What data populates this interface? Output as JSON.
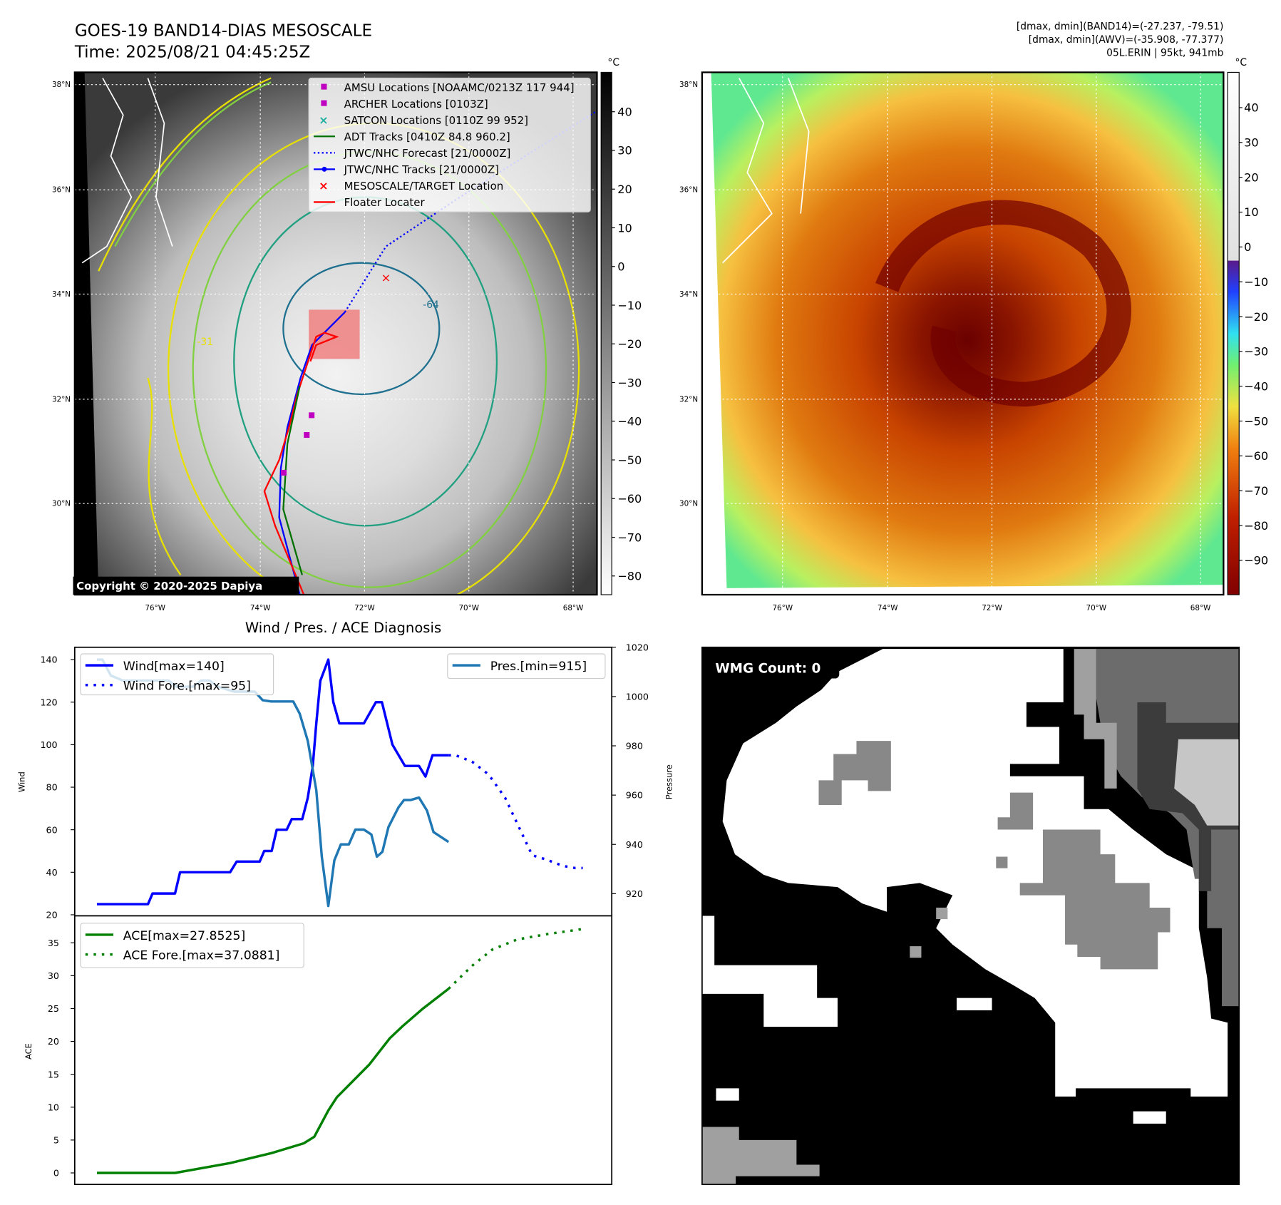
{
  "header": {
    "title": "GOES-19 BAND14-DIAS MESOSCALE",
    "time": "Time: 2025/08/21 04:45:25Z",
    "info_line1": "[dmax, dmin](BAND14)=(-27.237, -79.51)",
    "info_line2": "[dmax, dmin](AWV)=(-35.908, -77.377)",
    "info_line3": "05L.ERIN | 95kt, 941mb"
  },
  "map": {
    "lat_labels": [
      "38°N",
      "36°N",
      "34°N",
      "32°N",
      "30°N"
    ],
    "lon_labels": [
      "76°W",
      "74°W",
      "72°W",
      "70°W",
      "68°W"
    ],
    "contour_labels": [
      "-31",
      "-64"
    ],
    "copyright": "Copyright © 2020-2025 Dapiya",
    "legend": [
      {
        "label": "AMSU Locations [NOAAMC/0213Z 117 944]",
        "color": "#c000c0",
        "marker": "square"
      },
      {
        "label": "ARCHER Locations [0103Z]",
        "color": "#c000c0",
        "marker": "square"
      },
      {
        "label": "SATCON Locations [0110Z 99 952]",
        "color": "#20b0a0",
        "marker": "x"
      },
      {
        "label": "ADT Tracks [0410Z 84.8 960.2]",
        "color": "#007000",
        "marker": "line"
      },
      {
        "label": "JTWC/NHC Forecast [21/0000Z]",
        "color": "#0000ff",
        "marker": "dotted"
      },
      {
        "label": "JTWC/NHC Tracks [21/0000Z]",
        "color": "#0000ff",
        "marker": "line-dot"
      },
      {
        "label": "MESOSCALE/TARGET Location",
        "color": "#ff0000",
        "marker": "x"
      },
      {
        "label": "Floater Locater",
        "color": "#ff0000",
        "marker": "line"
      }
    ]
  },
  "colorbar_left": {
    "unit": "°C",
    "ticks": [
      "40",
      "30",
      "20",
      "10",
      "0",
      "−10",
      "−20",
      "−30",
      "−40",
      "−50",
      "−60",
      "−70",
      "−80"
    ]
  },
  "colorbar_right": {
    "unit": "°C",
    "ticks": [
      "40",
      "30",
      "20",
      "10",
      "0",
      "−10",
      "−20",
      "−30",
      "−40",
      "−50",
      "−60",
      "−70",
      "−80",
      "−90"
    ]
  },
  "wmg": {
    "label": "WMG Count: 0"
  },
  "chart_data": [
    {
      "type": "line",
      "title": "Wind / Pres. / ACE Diagnosis",
      "ylabel": "Wind",
      "y2label": "Pressure",
      "ylim": [
        19.5,
        145.8
      ],
      "y2lim": [
        911,
        1020
      ],
      "yticks": [
        "20",
        "40",
        "60",
        "80",
        "100",
        "120",
        "140"
      ],
      "y2ticks": [
        "920",
        "940",
        "960",
        "980",
        "1000",
        "1020"
      ],
      "legend_left": [
        "Wind[max=140]",
        "Wind Fore.[max=95]"
      ],
      "legend_right": [
        "Pres.[min=915]"
      ],
      "series": [
        {
          "name": "Wind",
          "color": "#0000ff",
          "style": "solid",
          "x": [
            0,
            10.2,
            11.1,
            15.6,
            16.6,
            26.6,
            27.9,
            32.5,
            33.4,
            34.9,
            35.9,
            37.9,
            38.9,
            41.0,
            42.1,
            43.1,
            43.8,
            44.6,
            46.2,
            47.2,
            48.4,
            53.3,
            55.7,
            56.9,
            59.0,
            61.5,
            64.3,
            65.6,
            67.0,
            70.2
          ],
          "y": [
            25,
            25,
            30,
            30,
            40,
            40,
            45,
            45,
            50,
            50,
            60,
            60,
            65,
            65,
            75,
            90,
            110,
            130,
            140,
            120,
            110,
            110,
            120,
            120,
            100,
            90,
            90,
            85,
            95,
            95
          ]
        },
        {
          "name": "Wind Fore.",
          "color": "#0000ff",
          "style": "dotted",
          "x": [
            70.2,
            71.6,
            74.9,
            78.2,
            81.5,
            83.9,
            86.9,
            89.7,
            93.0,
            95.4,
            97.0
          ],
          "y": [
            95,
            95,
            92,
            86,
            75,
            63,
            48,
            46,
            43,
            42,
            42
          ]
        },
        {
          "name": "Pres.",
          "color": "#1f77b4",
          "style": "solid",
          "axis": "right",
          "x": [
            0,
            1.1,
            2.8,
            5.2,
            14.3,
            15.9,
            19.2,
            20.8,
            22.5,
            24.1,
            27.4,
            31.5,
            33.1,
            34.8,
            39.2,
            40.5,
            42.1,
            43.8,
            44.9,
            46.2,
            47.4,
            48.7,
            50.3,
            51.6,
            53.3,
            54.8,
            55.9,
            57.0,
            58.2,
            60.2,
            61.3,
            62.6,
            64.3,
            65.9,
            67.2,
            70.2
          ],
          "y": [
            1015,
            1015,
            1008.5,
            1006.5,
            1006.5,
            1004,
            1004,
            1006.5,
            1006.5,
            1004,
            1002,
            1002,
            998.5,
            998,
            998,
            993,
            982,
            962,
            935,
            915,
            933.5,
            940,
            940,
            946,
            946,
            944,
            935,
            937,
            947,
            955,
            958,
            958,
            959,
            953.7,
            945,
            941
          ]
        }
      ]
    },
    {
      "type": "line",
      "ylabel": "ACE",
      "ylim": [
        -1.75,
        39.1
      ],
      "yticks": [
        "0",
        "5",
        "10",
        "15",
        "20",
        "25",
        "30",
        "35"
      ],
      "legend": [
        "ACE[max=27.8525]",
        "ACE Fore.[max=37.0881]"
      ],
      "series": [
        {
          "name": "ACE",
          "color": "#008000",
          "style": "solid",
          "x": [
            0,
            15.6,
            26.6,
            34.8,
            41.3,
            43.4,
            46.2,
            47.9,
            54.4,
            58.5,
            61.0,
            65.1,
            70.2
          ],
          "y": [
            0,
            0,
            1.5,
            3,
            4.5,
            5.5,
            9.5,
            11.5,
            16.5,
            20.5,
            22.3,
            25,
            28
          ]
        },
        {
          "name": "ACE Fore.",
          "color": "#008000",
          "style": "dotted",
          "x": [
            70.2,
            74.9,
            79.0,
            83.9,
            89.7,
            97.0
          ],
          "y": [
            28,
            31.5,
            34,
            35.5,
            36.3,
            37.1
          ]
        }
      ]
    }
  ]
}
